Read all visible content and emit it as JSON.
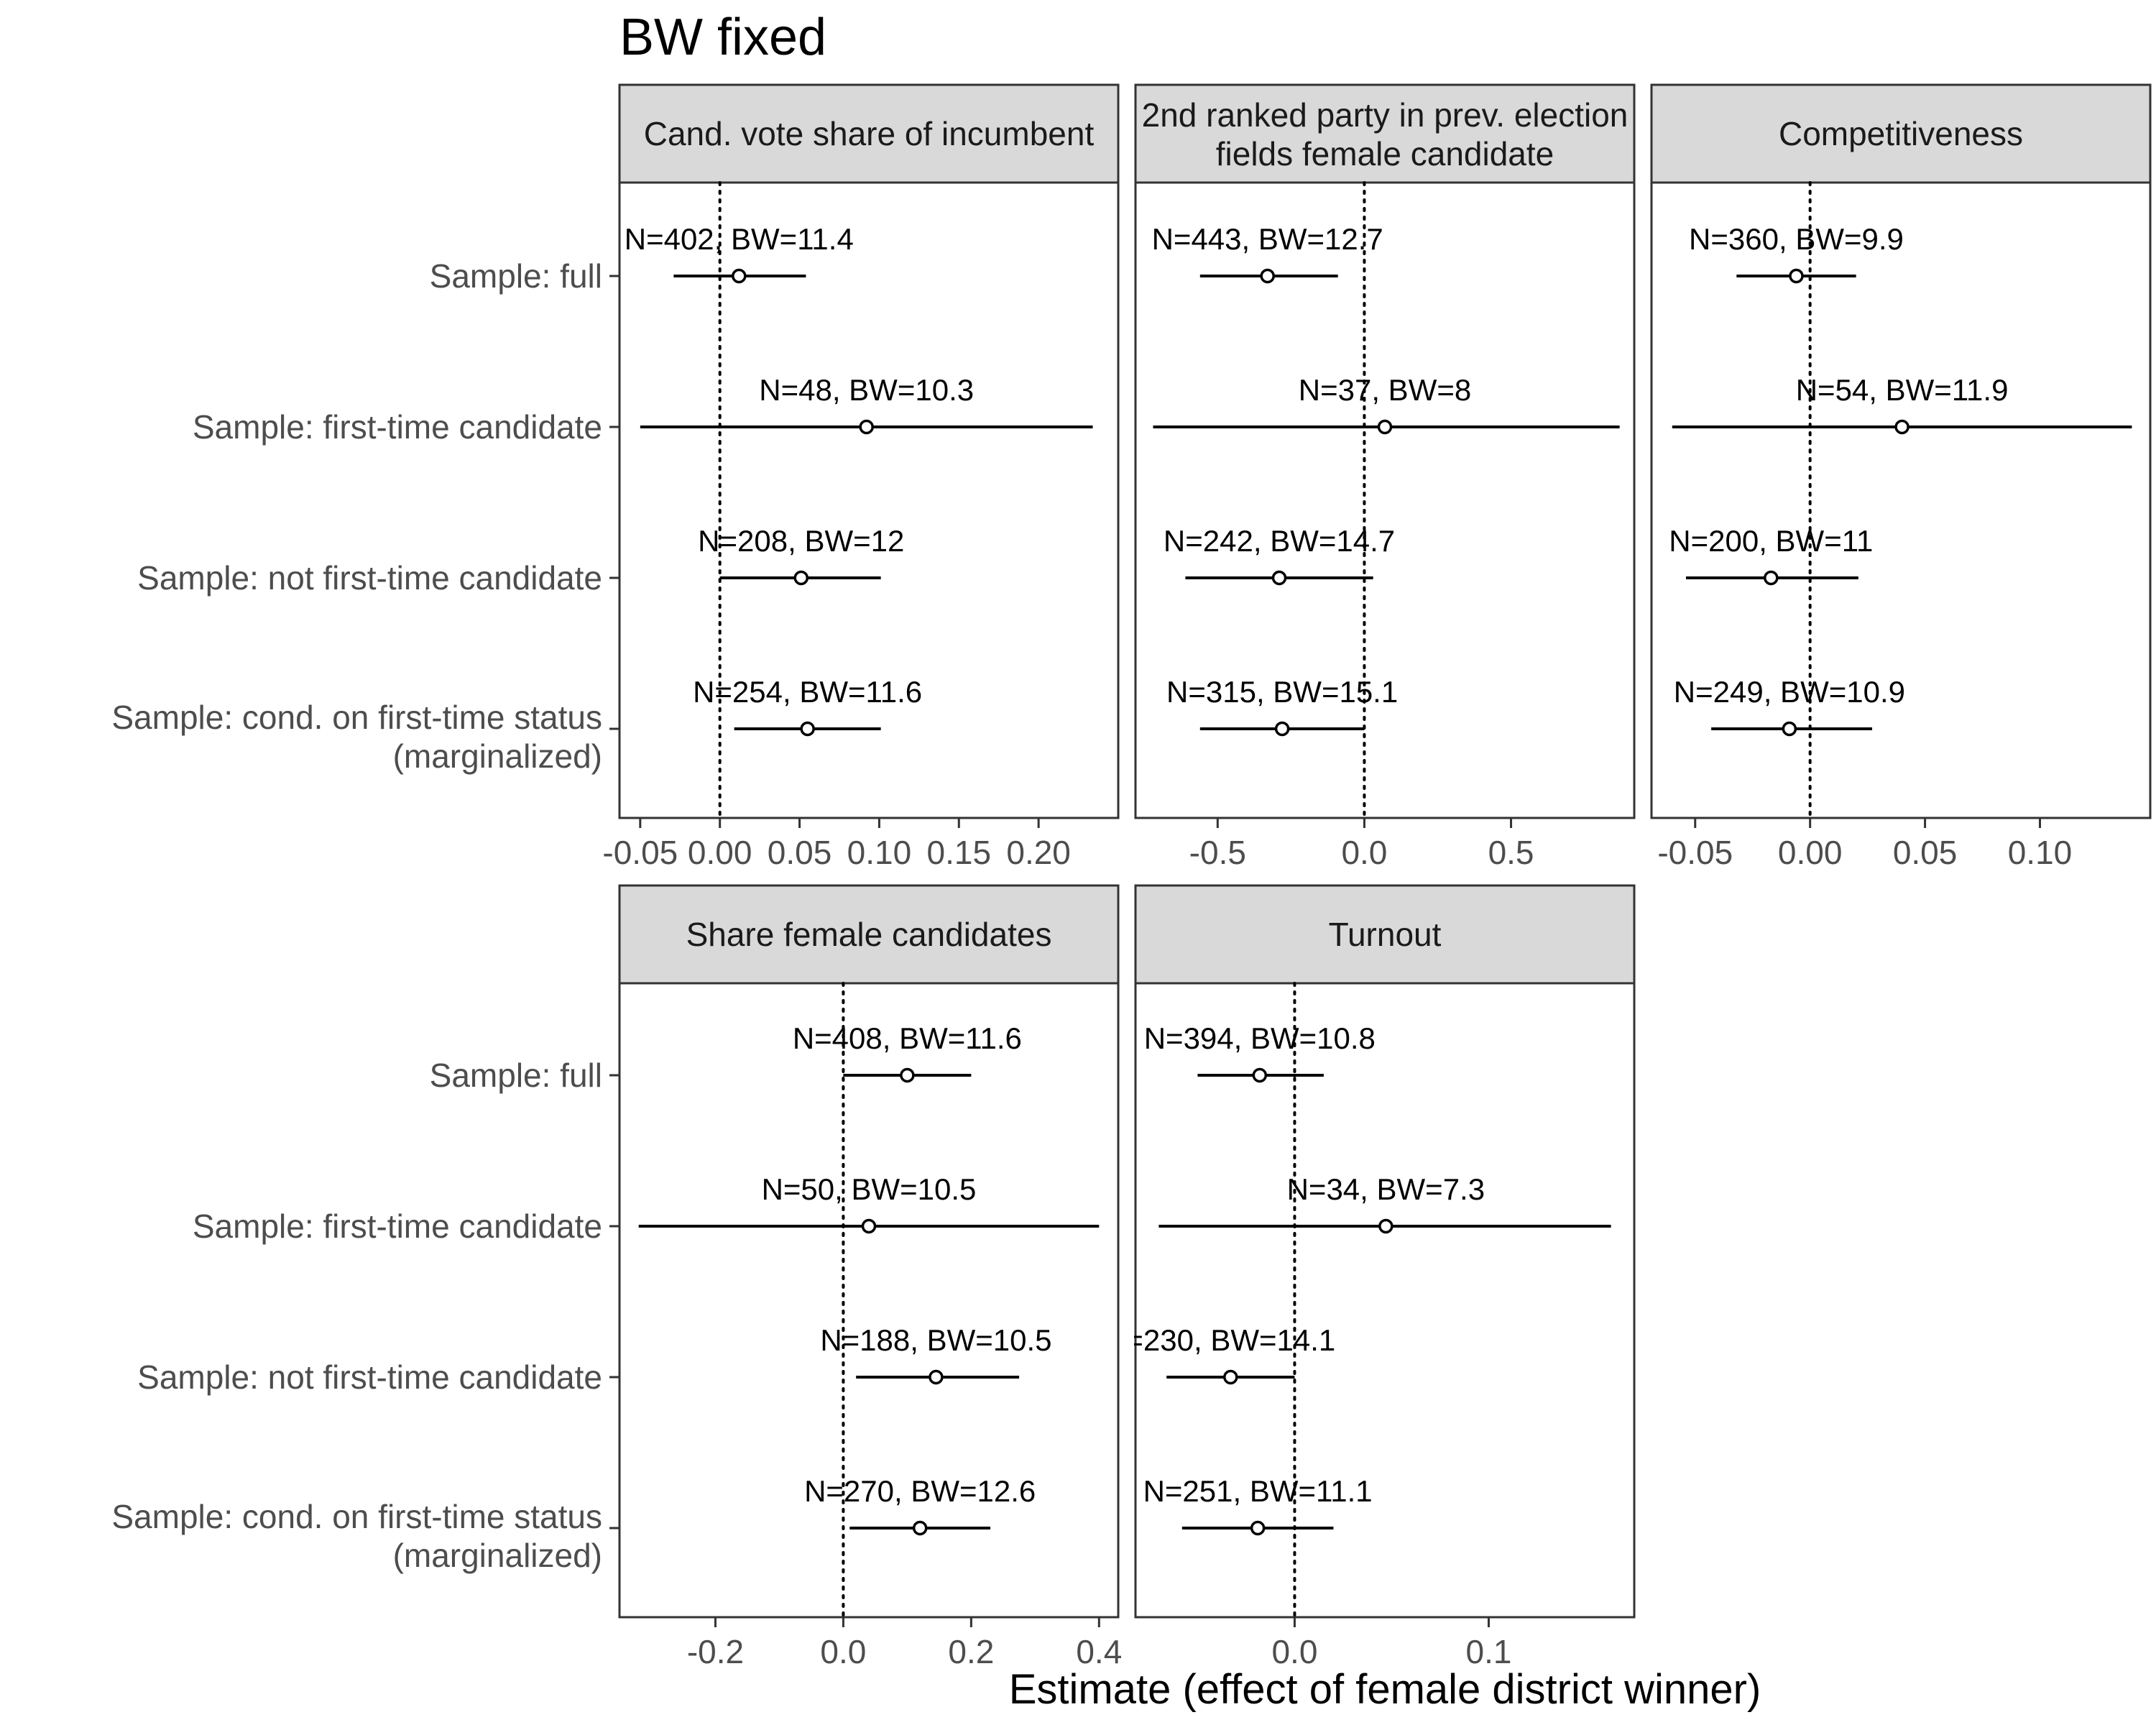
{
  "title": "BW fixed",
  "xlabel": "Estimate (effect of female district winner)",
  "rows": [
    [
      "Sample: full"
    ],
    [
      "Sample: first-time candidate"
    ],
    [
      "Sample: not first-time candidate"
    ],
    [
      "Sample: cond. on first-time status",
      "(marginalized)"
    ]
  ],
  "colors": {
    "strip_fill": "#d9d9d9",
    "panel_border": "#333333",
    "line": "#000000",
    "point_fill": "#ffffff"
  },
  "chart_data": [
    {
      "type": "scatter",
      "facet": [
        "Cand. vote share of incumbent"
      ],
      "xlim": [
        -0.063,
        0.25
      ],
      "xticks": [
        -0.05,
        0,
        0.05,
        0.1,
        0.15,
        0.2
      ],
      "xtick_labels": [
        "-0.05",
        "0.00",
        "0.05",
        "0.10",
        "0.15",
        "0.20"
      ],
      "reference_line": 0,
      "points": [
        {
          "label": "N=402, BW=11.4",
          "estimate": 0.012,
          "ci": [
            -0.029,
            0.054
          ]
        },
        {
          "label": "N=48, BW=10.3",
          "estimate": 0.092,
          "ci": [
            -0.05,
            0.234
          ]
        },
        {
          "label": "N=208, BW=12",
          "estimate": 0.051,
          "ci": [
            0.0,
            0.101
          ]
        },
        {
          "label": "N=254, BW=11.6",
          "estimate": 0.055,
          "ci": [
            0.009,
            0.101
          ]
        }
      ]
    },
    {
      "type": "scatter",
      "facet": [
        "2nd ranked party in prev. election",
        "fields female candidate"
      ],
      "xlim": [
        -0.78,
        0.92
      ],
      "xticks": [
        -0.5,
        0,
        0.5
      ],
      "xtick_labels": [
        "-0.5",
        "0.0",
        "0.5"
      ],
      "reference_line": 0,
      "points": [
        {
          "label": "N=443, BW=12.7",
          "estimate": -0.33,
          "ci": [
            -0.56,
            -0.09
          ]
        },
        {
          "label": "N=37, BW=8",
          "estimate": 0.07,
          "ci": [
            -0.72,
            0.87
          ]
        },
        {
          "label": "N=242, BW=14.7",
          "estimate": -0.29,
          "ci": [
            -0.61,
            0.03
          ]
        },
        {
          "label": "N=315, BW=15.1",
          "estimate": -0.28,
          "ci": [
            -0.56,
            0.0
          ]
        }
      ]
    },
    {
      "type": "scatter",
      "facet": [
        "Competitiveness"
      ],
      "xlim": [
        -0.069,
        0.148
      ],
      "xticks": [
        -0.05,
        0,
        0.05,
        0.1
      ],
      "xtick_labels": [
        "-0.05",
        "0.00",
        "0.05",
        "0.10"
      ],
      "reference_line": 0,
      "points": [
        {
          "label": "N=360, BW=9.9",
          "estimate": -0.006,
          "ci": [
            -0.032,
            0.02
          ]
        },
        {
          "label": "N=54, BW=11.9",
          "estimate": 0.04,
          "ci": [
            -0.06,
            0.14
          ]
        },
        {
          "label": "N=200, BW=11",
          "estimate": -0.017,
          "ci": [
            -0.054,
            0.021
          ]
        },
        {
          "label": "N=249, BW=10.9",
          "estimate": -0.009,
          "ci": [
            -0.043,
            0.027
          ]
        }
      ]
    },
    {
      "type": "scatter",
      "facet": [
        "Share female candidates"
      ],
      "xlim": [
        -0.35,
        0.43
      ],
      "xticks": [
        -0.2,
        0,
        0.2,
        0.4
      ],
      "xtick_labels": [
        "-0.2",
        "0.0",
        "0.2",
        "0.4"
      ],
      "reference_line": 0,
      "points": [
        {
          "label": "N=408, BW=11.6",
          "estimate": 0.1,
          "ci": [
            0.0,
            0.2
          ]
        },
        {
          "label": "N=50, BW=10.5",
          "estimate": 0.04,
          "ci": [
            -0.32,
            0.4
          ]
        },
        {
          "label": "N=188, BW=10.5",
          "estimate": 0.145,
          "ci": [
            0.02,
            0.275
          ]
        },
        {
          "label": "N=270, BW=12.6",
          "estimate": 0.12,
          "ci": [
            0.01,
            0.23
          ]
        }
      ]
    },
    {
      "type": "scatter",
      "facet": [
        "Turnout"
      ],
      "xlim": [
        -0.082,
        0.175
      ],
      "xticks": [
        0,
        0.1
      ],
      "xtick_labels": [
        "0.0",
        "0.1"
      ],
      "reference_line": 0,
      "points": [
        {
          "label": "N=394, BW=10.8",
          "estimate": -0.018,
          "ci": [
            -0.05,
            0.015
          ]
        },
        {
          "label": "N=34, BW=7.3",
          "estimate": 0.047,
          "ci": [
            -0.07,
            0.163
          ]
        },
        {
          "label": "=230, BW=14.1",
          "estimate": -0.033,
          "ci": [
            -0.066,
            0.0
          ]
        },
        {
          "label": "N=251, BW=11.1",
          "estimate": -0.019,
          "ci": [
            -0.058,
            0.02
          ]
        }
      ]
    }
  ]
}
